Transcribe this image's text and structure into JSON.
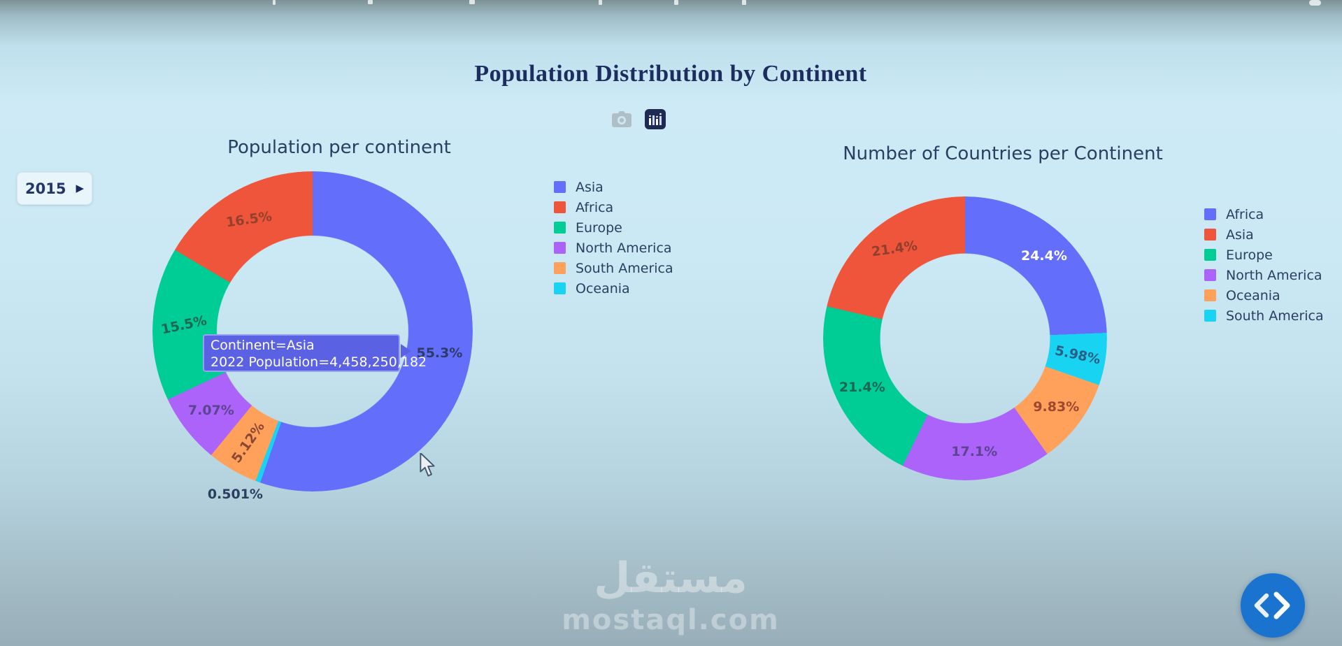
{
  "page": {
    "title": "Population Distribution by Continent",
    "year_control": {
      "label": "2015"
    },
    "modebar": {
      "camera_icon": "camera-icon",
      "chart_icon": "bar-chart-logo-icon"
    },
    "watermark": {
      "arabic": "مستقل",
      "latin": "mostaql.com"
    },
    "code_button_icon": "code-chevrons-icon",
    "accent_colors": {
      "title_navy": "#1c2d5e",
      "chart_text": "#2a3f5f",
      "tooltip_bg": "#5a62e3",
      "code_button_blue": "#1a73cf"
    }
  },
  "chart_data": [
    {
      "type": "pie",
      "hole": 0.6,
      "title": "Population per continent",
      "legend_position": "right",
      "slices": [
        {
          "name": "Asia",
          "value": 55.3,
          "display": "55.3%",
          "color": "#636EFA",
          "label_color": "#2e3a69",
          "label_rotate": 0,
          "label_outside": false
        },
        {
          "name": "Oceania",
          "value": 0.501,
          "display": "0.501%",
          "color": "#19D3F3",
          "label_color": "#2a3f5f",
          "label_rotate": 0,
          "label_outside": true
        },
        {
          "name": "South America",
          "value": 5.12,
          "display": "5.12%",
          "color": "#FFA15A",
          "label_color": "#8a4733",
          "label_rotate": -55,
          "label_outside": false
        },
        {
          "name": "North America",
          "value": 7.07,
          "display": "7.07%",
          "color": "#AB63FA",
          "label_color": "#5d4390",
          "label_rotate": 0,
          "label_outside": false
        },
        {
          "name": "Europe",
          "value": 15.5,
          "display": "15.5%",
          "color": "#00CC96",
          "label_color": "#1e6653",
          "label_rotate": -12,
          "label_outside": false
        },
        {
          "name": "Africa",
          "value": 16.5,
          "display": "16.5%",
          "color": "#EF553B",
          "label_color": "#94402c",
          "label_rotate": -8,
          "label_outside": false
        }
      ],
      "legend": [
        {
          "label": "Asia",
          "color": "#636EFA"
        },
        {
          "label": "Africa",
          "color": "#EF553B"
        },
        {
          "label": "Europe",
          "color": "#00CC96"
        },
        {
          "label": "North America",
          "color": "#AB63FA"
        },
        {
          "label": "South America",
          "color": "#FFA15A"
        },
        {
          "label": "Oceania",
          "color": "#19D3F3"
        }
      ],
      "tooltip": {
        "line1": "Continent=Asia",
        "line2": "2022 Population=4,458,250,182"
      }
    },
    {
      "type": "pie",
      "hole": 0.6,
      "title": "Number of Countries per Continent",
      "legend_position": "right",
      "slices": [
        {
          "name": "Africa",
          "value": 24.4,
          "display": "24.4%",
          "color": "#636EFA",
          "label_color": "#ffffff",
          "label_rotate": 0,
          "label_outside": false
        },
        {
          "name": "South America",
          "value": 5.98,
          "display": "5.98%",
          "color": "#19D3F3",
          "label_color": "#2a5e84",
          "label_rotate": 12,
          "label_outside": false
        },
        {
          "name": "Oceania",
          "value": 9.83,
          "display": "9.83%",
          "color": "#FFA15A",
          "label_color": "#9c4730",
          "label_rotate": 0,
          "label_outside": false
        },
        {
          "name": "North America",
          "value": 17.1,
          "display": "17.1%",
          "color": "#AB63FA",
          "label_color": "#5d4390",
          "label_rotate": 0,
          "label_outside": false
        },
        {
          "name": "Europe",
          "value": 21.4,
          "display": "21.4%",
          "color": "#00CC96",
          "label_color": "#1e6653",
          "label_rotate": 0,
          "label_outside": false
        },
        {
          "name": "Asia",
          "value": 21.4,
          "display": "21.4%",
          "color": "#EF553B",
          "label_color": "#8f3f2c",
          "label_rotate": -8,
          "label_outside": false
        }
      ],
      "legend": [
        {
          "label": "Africa",
          "color": "#636EFA"
        },
        {
          "label": "Asia",
          "color": "#EF553B"
        },
        {
          "label": "Europe",
          "color": "#00CC96"
        },
        {
          "label": "North America",
          "color": "#AB63FA"
        },
        {
          "label": "Oceania",
          "color": "#FFA15A"
        },
        {
          "label": "South America",
          "color": "#19D3F3"
        }
      ]
    }
  ]
}
